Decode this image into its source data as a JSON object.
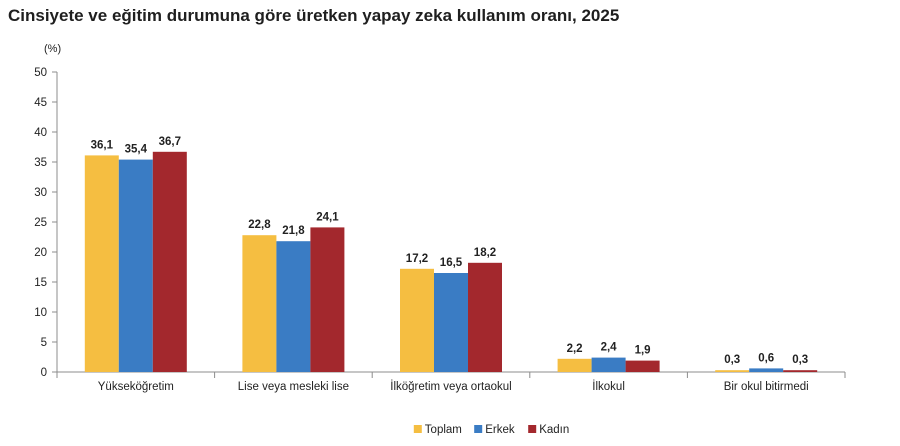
{
  "chart_data": {
    "type": "bar",
    "title": "Cinsiyete ve eğitim durumuna göre üretken yapay zeka kullanım oranı, 2025",
    "ylabel": "(%)",
    "xlabel": "",
    "ylim": [
      0,
      50
    ],
    "yticks": [
      "0",
      "5",
      "10",
      "15",
      "20",
      "25",
      "30",
      "35",
      "40",
      "45",
      "50"
    ],
    "grid": false,
    "legend_position": "bottom",
    "categories": [
      "Yükseköğretim",
      "Lise veya mesleki lise",
      "İlköğretim veya ortaokul",
      "İlkokul",
      "Bir okul bitirmedi"
    ],
    "series": [
      {
        "name": "Toplam",
        "color": "#F5BE41",
        "values": [
          36.1,
          22.8,
          17.2,
          2.2,
          0.3
        ],
        "labels": [
          "36,1",
          "22,8",
          "17,2",
          "2,2",
          "0,3"
        ]
      },
      {
        "name": "Erkek",
        "color": "#3A7CC4",
        "values": [
          35.4,
          21.8,
          16.5,
          2.4,
          0.6
        ],
        "labels": [
          "35,4",
          "21,8",
          "16,5",
          "2,4",
          "0,6"
        ]
      },
      {
        "name": "Kadın",
        "color": "#A3282D",
        "values": [
          36.7,
          24.1,
          18.2,
          1.9,
          0.3
        ],
        "labels": [
          "36,7",
          "24,1",
          "18,2",
          "1,9",
          "0,3"
        ]
      }
    ]
  }
}
